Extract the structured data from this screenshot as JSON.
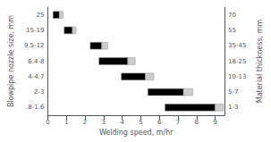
{
  "chart_data": {
    "type": "bar",
    "orientation": "horizontal",
    "xlabel": "Welding speed, m/hr",
    "ylabel": "Blowpipe nozzle size, mm",
    "y2label": "Material thickness, mm",
    "categories": [
      "25",
      "15-19",
      "9.5-12",
      "6.4-8",
      "4-4.7",
      "2-3",
      ".8-1.6"
    ],
    "y2categories": [
      "70",
      "55",
      "35-45",
      "18-25",
      "10-13",
      "5-7",
      "1-3"
    ],
    "series": [
      {
        "color": "#000000",
        "starts": [
          0.28,
          0.88,
          2.28,
          2.75,
          3.95,
          5.38,
          6.3
        ],
        "ends": [
          0.62,
          1.32,
          2.9,
          4.3,
          5.25,
          7.3,
          9.0
        ]
      },
      {
        "color": "#cccccc",
        "starts": [
          0.62,
          1.32,
          2.9,
          4.3,
          5.25,
          7.3,
          9.0
        ],
        "ends": [
          0.82,
          1.52,
          3.22,
          4.7,
          5.7,
          7.8,
          9.45
        ]
      }
    ],
    "xlim": [
      0,
      9.5
    ],
    "xticks": [
      0,
      1,
      2,
      3,
      4,
      5,
      6,
      7,
      8,
      9
    ],
    "grid": false
  }
}
